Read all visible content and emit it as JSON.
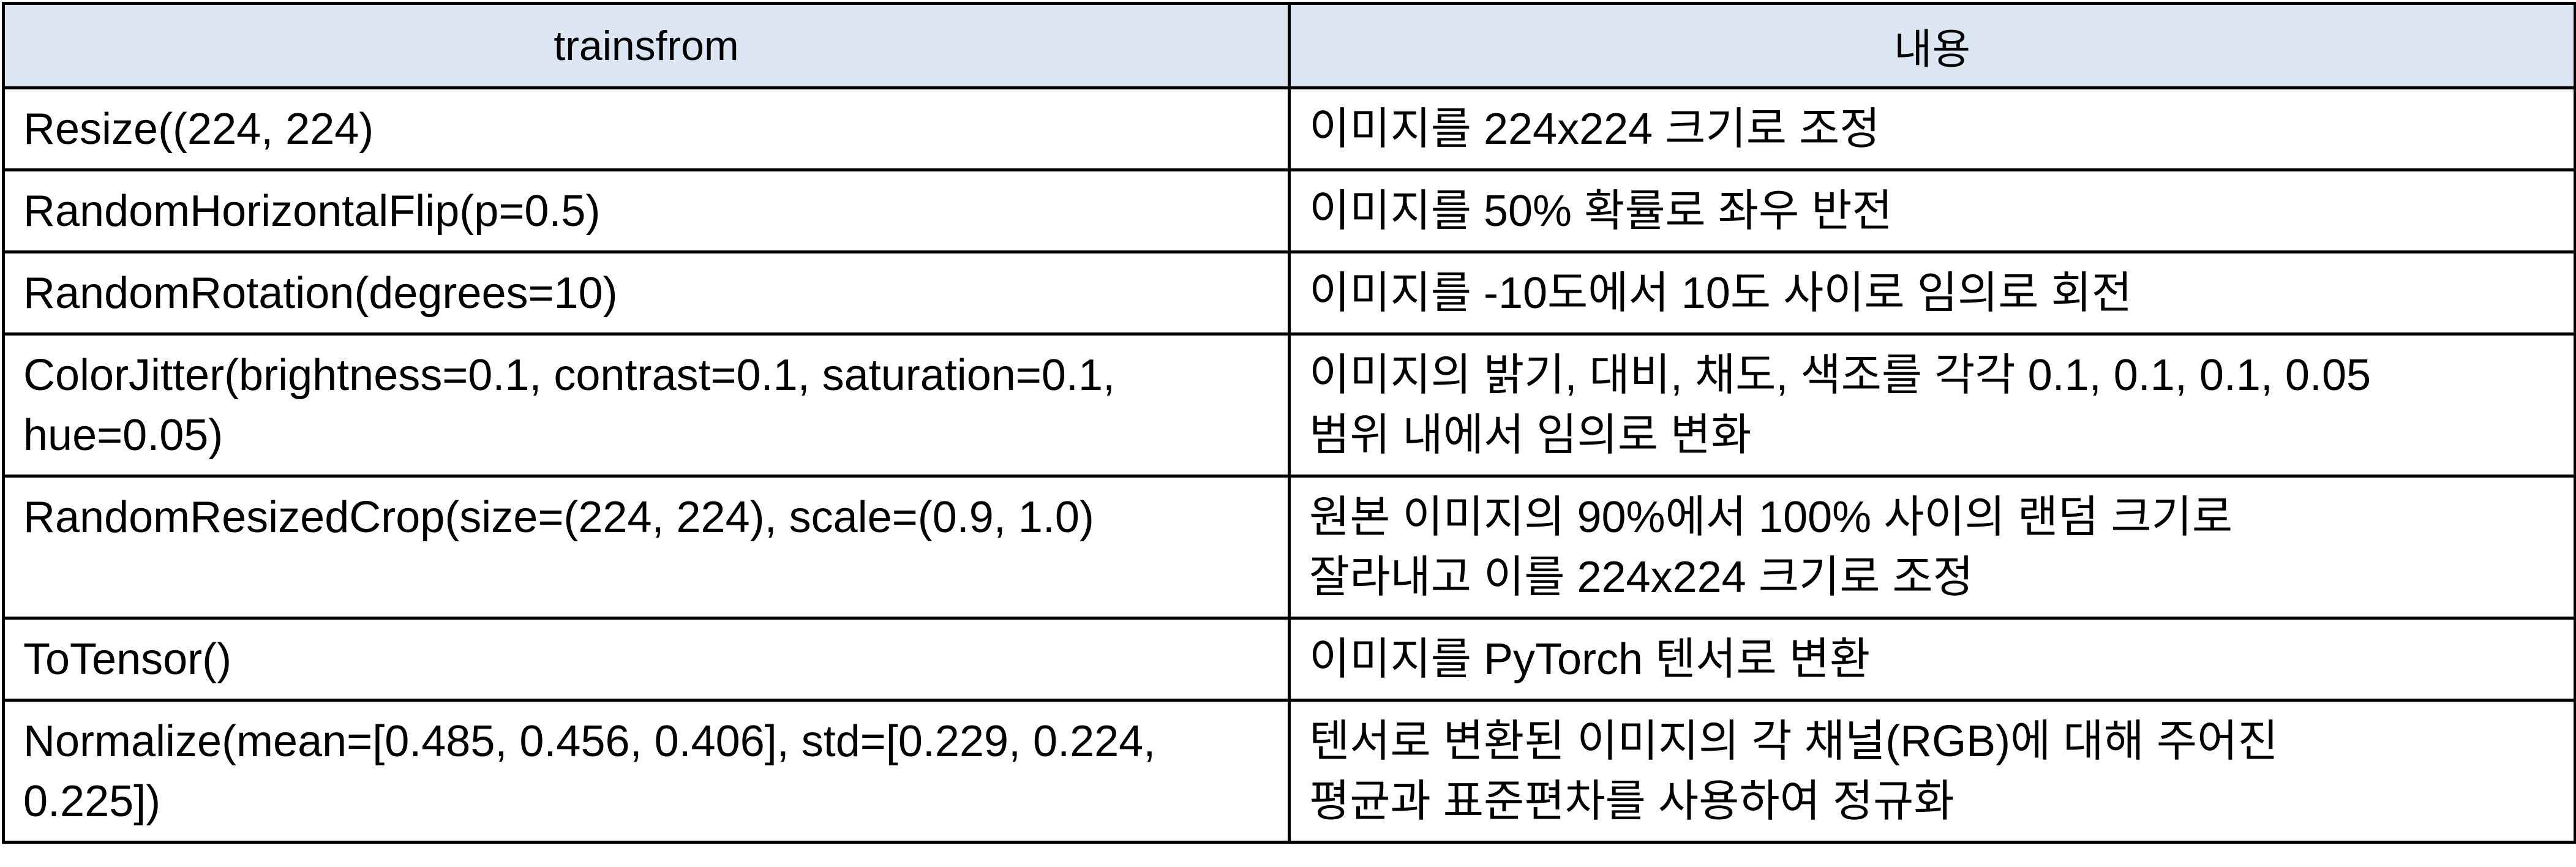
{
  "table": {
    "headers": [
      "trainsfrom",
      "내용"
    ],
    "rows": [
      {
        "transform": [
          "Resize((224, 224)"
        ],
        "description": [
          "이미지를 224x224 크기로 조정"
        ]
      },
      {
        "transform": [
          "RandomHorizontalFlip(p=0.5)"
        ],
        "description": [
          "이미지를 50% 확률로 좌우 반전"
        ]
      },
      {
        "transform": [
          "RandomRotation(degrees=10)"
        ],
        "description": [
          "이미지를 -10도에서 10도 사이로 임의로 회전"
        ]
      },
      {
        "transform": [
          "ColorJitter(brightness=0.1, contrast=0.1, saturation=0.1,",
          "hue=0.05)"
        ],
        "description": [
          "이미지의 밝기, 대비, 채도, 색조를 각각 0.1, 0.1, 0.1, 0.05",
          "범위 내에서 임의로 변화"
        ]
      },
      {
        "transform": [
          "RandomResizedCrop(size=(224, 224), scale=(0.9, 1.0)"
        ],
        "description": [
          "원본 이미지의 90%에서 100% 사이의 랜덤 크기로",
          "잘라내고 이를 224x224 크기로 조정"
        ]
      },
      {
        "transform": [
          "ToTensor()"
        ],
        "description": [
          "이미지를 PyTorch 텐서로 변환"
        ]
      },
      {
        "transform": [
          "Normalize(mean=[0.485, 0.456, 0.406], std=[0.229, 0.224,",
          "0.225])"
        ],
        "description": [
          "텐서로 변환된 이미지의 각 채널(RGB)에 대해 주어진",
          "평균과 표준편차를 사용하여 정규화"
        ]
      }
    ]
  }
}
